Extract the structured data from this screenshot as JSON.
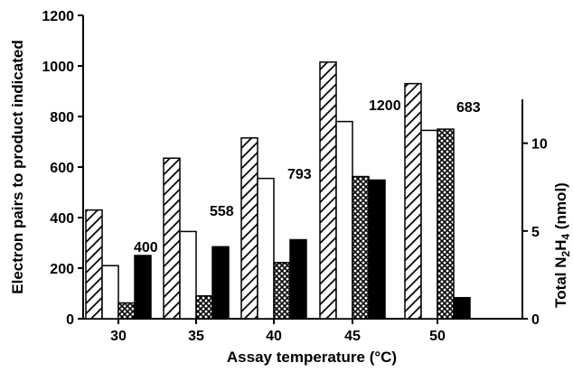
{
  "chart_data": {
    "type": "bar",
    "title": "",
    "xlabel": "Assay temperature (°C)",
    "ylabel": "Electron pairs to product indicated",
    "ylabel_right_parts": [
      "Total N",
      "2",
      "H",
      "4",
      " (nmol)"
    ],
    "categories": [
      "30",
      "35",
      "40",
      "45",
      "50"
    ],
    "ylim": [
      0,
      1200
    ],
    "yticks": [
      "0",
      "200",
      "400",
      "600",
      "800",
      "1000",
      "1200"
    ],
    "ylim_right": [
      0,
      12.5
    ],
    "yticks_right": [
      "0",
      "5",
      "10"
    ],
    "series": [
      {
        "pattern": "diagonal-hatch",
        "axis": "left",
        "values": [
          430,
          635,
          715,
          1015,
          930
        ]
      },
      {
        "pattern": "open",
        "axis": "left",
        "values": [
          210,
          345,
          555,
          780,
          745
        ]
      },
      {
        "pattern": "crosshatch",
        "axis": "right",
        "values": [
          0.9,
          1.3,
          3.2,
          8.1,
          10.8
        ]
      },
      {
        "pattern": "solid",
        "axis": "right",
        "values": [
          3.6,
          4.1,
          4.5,
          7.9,
          1.2
        ]
      }
    ],
    "annotations": [
      "400",
      "558",
      "793",
      "1200",
      "683"
    ],
    "grid": false,
    "colors": {
      "ink": "#000000",
      "open_fill": "#ffffff",
      "solid_fill": "#000000"
    }
  }
}
